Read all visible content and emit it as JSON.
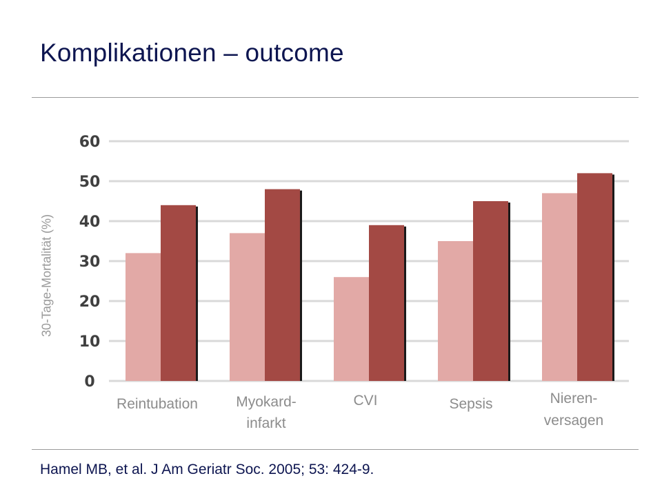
{
  "title": "Komplikationen – outcome",
  "citation": "Hamel MB, et al. J Am Geriatr Soc. 2005; 53: 424-9.",
  "colors": {
    "title": "#0d1550",
    "series_light": "#e2a9a6",
    "series_dark": "#a34944",
    "grid": "#d9d9d9",
    "bar_shadow": "#1a1a1a"
  },
  "chart_data": {
    "type": "bar",
    "ylabel": "30-Tage-Mortalität (%)",
    "xlabel": "",
    "ylim": [
      0,
      60
    ],
    "yticks": [
      0,
      10,
      20,
      30,
      40,
      50,
      60
    ],
    "grid": true,
    "legend": "none",
    "categories": [
      [
        "Reintubation"
      ],
      [
        "Myokard-",
        "infarkt"
      ],
      [
        "CVI"
      ],
      [
        "Sepsis"
      ],
      [
        "Nieren-",
        "versagen"
      ]
    ],
    "series": [
      {
        "values": [
          32,
          37,
          26,
          35,
          47
        ]
      },
      {
        "values": [
          44,
          48,
          39,
          45,
          52
        ]
      }
    ]
  }
}
